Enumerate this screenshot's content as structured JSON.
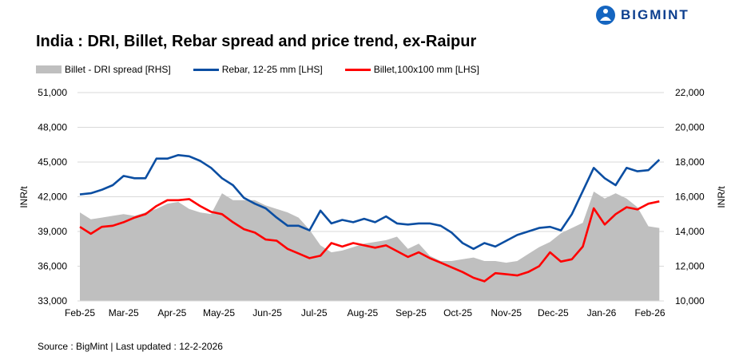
{
  "logo": {
    "text": "BIGMINT"
  },
  "title": "India : DRI, Billet, Rebar spread and price trend, ex-Raipur",
  "source": "Source : BigMint | Last updated : 12-2-2026",
  "chart_data": {
    "type": "line",
    "title": "India : DRI, Billet, Rebar spread and price trend, ex-Raipur",
    "ylabel_left": "INR/t",
    "ylabel_right": "INR/t",
    "ylim_left": [
      33000,
      51000
    ],
    "ylim_right": [
      10000,
      22000
    ],
    "yticks_left": [
      "33,000",
      "36,000",
      "39,000",
      "42,000",
      "45,000",
      "48,000",
      "51,000"
    ],
    "yticks_right": [
      "10,000",
      "12,000",
      "14,000",
      "16,000",
      "18,000",
      "20,000",
      "22,000"
    ],
    "xticks": [
      {
        "label": "Feb-25",
        "date": "2025-02-01"
      },
      {
        "label": "Mar-25",
        "date": "2025-03-01"
      },
      {
        "label": "Apr-25",
        "date": "2025-04-01"
      },
      {
        "label": "May-25",
        "date": "2025-05-01"
      },
      {
        "label": "Jun-25",
        "date": "2025-06-01"
      },
      {
        "label": "Jul-25",
        "date": "2025-07-01"
      },
      {
        "label": "Aug-25",
        "date": "2025-08-01"
      },
      {
        "label": "Sep-25",
        "date": "2025-09-01"
      },
      {
        "label": "Oct-25",
        "date": "2025-10-01"
      },
      {
        "label": "Nov-25",
        "date": "2025-11-01"
      },
      {
        "label": "Dec-25",
        "date": "2025-12-01"
      },
      {
        "label": "Jan-26",
        "date": "2026-01-01"
      },
      {
        "label": "Feb-26",
        "date": "2026-02-01"
      }
    ],
    "grid": true,
    "legend_position": "top-left",
    "x": [
      "2025-02-01",
      "2025-02-08",
      "2025-02-15",
      "2025-02-22",
      "2025-03-01",
      "2025-03-08",
      "2025-03-15",
      "2025-03-22",
      "2025-03-29",
      "2025-04-05",
      "2025-04-12",
      "2025-04-19",
      "2025-04-26",
      "2025-05-03",
      "2025-05-10",
      "2025-05-17",
      "2025-05-24",
      "2025-05-31",
      "2025-06-07",
      "2025-06-14",
      "2025-06-21",
      "2025-06-28",
      "2025-07-05",
      "2025-07-12",
      "2025-07-19",
      "2025-07-26",
      "2025-08-02",
      "2025-08-09",
      "2025-08-16",
      "2025-08-23",
      "2025-08-30",
      "2025-09-06",
      "2025-09-13",
      "2025-09-20",
      "2025-09-27",
      "2025-10-04",
      "2025-10-11",
      "2025-10-18",
      "2025-10-25",
      "2025-11-01",
      "2025-11-08",
      "2025-11-15",
      "2025-11-22",
      "2025-11-29",
      "2025-12-06",
      "2025-12-13",
      "2025-12-20",
      "2025-12-27",
      "2026-01-03",
      "2026-01-10",
      "2026-01-17",
      "2026-01-24",
      "2026-01-31",
      "2026-02-07"
    ],
    "series": [
      {
        "name": "Billet - DRI spread  [RHS]",
        "axis": "right",
        "kind": "area",
        "color": "#bfbfbf",
        "values": [
          15100,
          14700,
          14800,
          14900,
          15000,
          14900,
          15100,
          15300,
          15600,
          15700,
          15300,
          15100,
          15000,
          16200,
          15800,
          15800,
          15800,
          15500,
          15300,
          15100,
          14800,
          14100,
          13200,
          12800,
          12900,
          13100,
          13300,
          13400,
          13500,
          13700,
          13000,
          13300,
          12600,
          12300,
          12300,
          12400,
          12500,
          12300,
          12300,
          12200,
          12300,
          12700,
          13100,
          13400,
          13900,
          14200,
          14500,
          16300,
          15900,
          16200,
          15900,
          15400,
          14300,
          14200
        ]
      },
      {
        "name": "Rebar, 12-25 mm [LHS]",
        "axis": "left",
        "kind": "line",
        "color": "#0b4ea2",
        "values": [
          42200,
          42300,
          42600,
          43000,
          43800,
          43600,
          43600,
          45300,
          45300,
          45600,
          45500,
          45100,
          44500,
          43600,
          43000,
          41900,
          41400,
          41000,
          40200,
          39500,
          39500,
          39100,
          40800,
          39700,
          40000,
          39800,
          40100,
          39800,
          40300,
          39700,
          39600,
          39700,
          39700,
          39500,
          38900,
          38000,
          37500,
          38000,
          37700,
          38200,
          38700,
          39000,
          39300,
          39400,
          39100,
          40500,
          42500,
          44500,
          43600,
          43000,
          44500,
          44200,
          44300,
          45200
        ]
      },
      {
        "name": "Billet,100x100 mm [LHS]",
        "axis": "left",
        "kind": "line",
        "color": "#ff0000",
        "values": [
          39400,
          38800,
          39400,
          39500,
          39800,
          40200,
          40500,
          41200,
          41700,
          41700,
          41800,
          41200,
          40700,
          40500,
          39800,
          39200,
          38900,
          38300,
          38200,
          37500,
          37100,
          36700,
          36900,
          38000,
          37700,
          38000,
          37800,
          37600,
          37800,
          37300,
          36800,
          37200,
          36700,
          36300,
          35900,
          35500,
          35000,
          34700,
          35400,
          35300,
          35200,
          35500,
          36000,
          37200,
          36400,
          36600,
          37700,
          41000,
          39600,
          40500,
          41100,
          40900,
          41400,
          41600
        ]
      }
    ]
  }
}
